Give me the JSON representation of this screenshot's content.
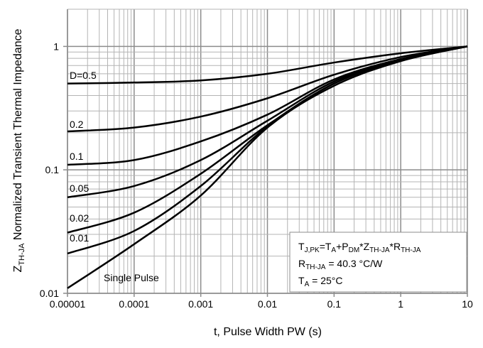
{
  "chart_data": {
    "type": "line",
    "xlabel": "t, Pulse Width PW (s)",
    "ylabel_main": "Z",
    "ylabel_sub": "TH-JA",
    "ylabel_rest": " Normalized Transient Thermal Impedance",
    "xscale": "log",
    "yscale": "log",
    "xlim": [
      1e-05,
      10
    ],
    "ylim": [
      0.01,
      2
    ],
    "grid": true,
    "x_ticks": [
      "0.00001",
      "0.0001",
      "0.001",
      "0.01",
      "0.1",
      "1",
      "10"
    ],
    "y_ticks": [
      "0.01",
      "0.1",
      "1"
    ],
    "x": [
      1e-05,
      0.0001,
      0.001,
      0.01,
      0.1,
      1,
      10
    ],
    "series": [
      {
        "name": "D=0.5",
        "values": [
          0.5,
          0.51,
          0.53,
          0.6,
          0.74,
          0.88,
          1
        ]
      },
      {
        "name": "0.2",
        "values": [
          0.205,
          0.22,
          0.27,
          0.38,
          0.59,
          0.82,
          1
        ]
      },
      {
        "name": "0.1",
        "values": [
          0.11,
          0.12,
          0.17,
          0.28,
          0.54,
          0.79,
          1
        ]
      },
      {
        "name": "0.05",
        "values": [
          0.06,
          0.074,
          0.12,
          0.25,
          0.52,
          0.78,
          1
        ]
      },
      {
        "name": "0.02",
        "values": [
          0.031,
          0.045,
          0.093,
          0.23,
          0.5,
          0.77,
          1
        ]
      },
      {
        "name": "0.01",
        "values": [
          0.021,
          0.032,
          0.074,
          0.225,
          0.5,
          0.77,
          1
        ]
      },
      {
        "name": "Single Pulse",
        "values": [
          0.011,
          0.025,
          0.062,
          0.22,
          0.48,
          0.76,
          1
        ]
      }
    ],
    "annotation_box": {
      "line1": {
        "t": "T",
        "t_sub": "J,PK",
        "eq": "=T",
        "a_sub": "A",
        "plus": "+P",
        "dm_sub": "DM",
        "z": "*Z",
        "z_sub": "TH-JA",
        "r": "*R",
        "r_sub": "TH-JA"
      },
      "line2": {
        "r": "R",
        "r_sub": "TH-JA",
        "value": " = 40.3 °C/W"
      },
      "line3": {
        "t": "T",
        "t_sub": "A",
        "value": " = 25°C"
      }
    },
    "colors": {
      "curve": "#000000",
      "grid": "#b4b4b4",
      "axis": "#8c8c8c"
    }
  }
}
